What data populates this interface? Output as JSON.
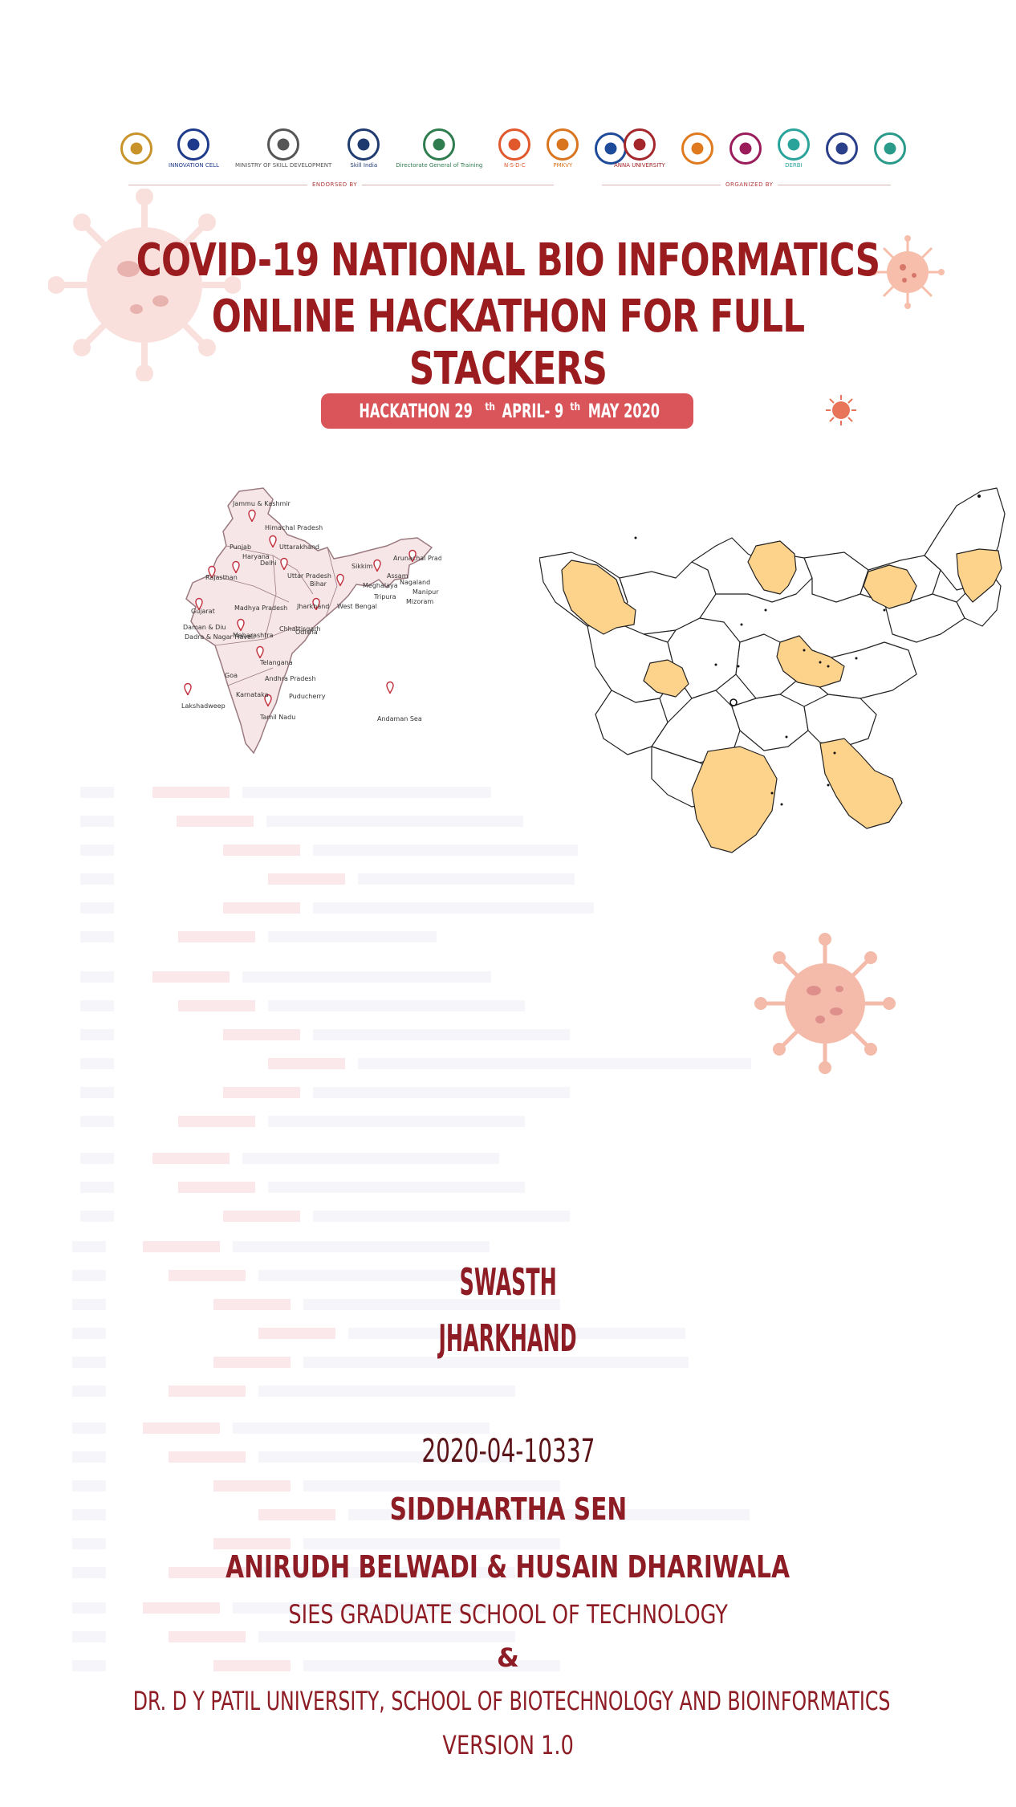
{
  "logos_left": [
    {
      "icon": "aicte-logo",
      "text": "",
      "color": "#c8942a"
    },
    {
      "icon": "innovation-cell-logo",
      "text": "INNOVATION CELL",
      "color": "#1e3a8a"
    },
    {
      "icon": "ministry-emblem-logo",
      "text": "MINISTRY OF SKILL DEVELOPMENT",
      "color": "#555555"
    },
    {
      "icon": "skill-india-logo",
      "text": "Skill India",
      "color": "#1e3a6e"
    },
    {
      "icon": "dgt-logo",
      "text": "Directorate General of Training",
      "color": "#2f7d4f"
    },
    {
      "icon": "nsdc-logo",
      "text": "N·S·D·C",
      "color": "#e0582c"
    },
    {
      "icon": "pmkvy-logo",
      "text": "PMKVY",
      "color": "#d9751e"
    },
    {
      "icon": "tree-logo",
      "text": "",
      "color": "#1e4a9a"
    }
  ],
  "logos_right": [
    {
      "icon": "anna-university-logo",
      "text": "ANNA UNIVERSITY",
      "color": "#a3272b"
    },
    {
      "icon": "circle-logo",
      "text": "",
      "color": "#e07a1e"
    },
    {
      "icon": "centre-logo",
      "text": "",
      "color": "#9b1c5a"
    },
    {
      "icon": "derbi-logo",
      "text": "DERBI",
      "color": "#2aa39a"
    },
    {
      "icon": "seal-logo",
      "text": "",
      "color": "#2a3f8a"
    },
    {
      "icon": "globe-logo",
      "text": "",
      "color": "#2a9a8a"
    }
  ],
  "endorsed_label": "ENDORSED BY",
  "organized_label": "ORGANIZED BY",
  "title_line1": "COVID-19 NATIONAL BIO INFORMATICS",
  "title_line2": "ONLINE HACKATHON FOR FULL STACKERS",
  "badge": {
    "prefix": "HACKATHON  29",
    "sup1": "th",
    "mid": " APRIL- 9",
    "sup2": "th",
    "suffix": " MAY 2020"
  },
  "india_map_labels": [
    "Jammu & Kashmir",
    "Himachal Pradesh",
    "Punjab",
    "Uttarakhand",
    "Haryana",
    "Delhi",
    "Rajasthan",
    "Uttar Pradesh",
    "Sikkim",
    "Arunachal Pradesh",
    "Assam",
    "Nagaland",
    "Meghalaya",
    "Manipur",
    "Tripura",
    "Mizoram",
    "Bihar",
    "Jharkhand",
    "West Bengal",
    "Gujarat",
    "Madhya Pradesh",
    "Chhattisgarh",
    "Odisha",
    "Daman & Diu",
    "Dadra & Nagar Haveli",
    "Maharashtra",
    "Telangana",
    "Goa",
    "Andhra Pradesh",
    "Karnataka",
    "Lakshadweep",
    "Puducherry",
    "Tamil Nadu",
    "Andaman Sea"
  ],
  "project_name_line1": "SWASTH",
  "project_name_line2": "JHARKHAND",
  "team_id": "2020-04-10337",
  "lead": "SIDDHARTHA SEN",
  "members": "ANIRUDH BELWADI & HUSAIN DHARIWALA",
  "institution1": "SIES GRADUATE SCHOOL OF TECHNOLOGY",
  "ampersand": "&",
  "institution2": "DR. D Y PATIL UNIVERSITY, SCHOOL OF BIOTECHNOLOGY AND BIOINFORMATICS",
  "version": "VERSION 1.0",
  "colors": {
    "title": "#9b1c1f",
    "badge": "#d9555a",
    "highlight_district": "#fdd38c",
    "virus": "#f2a893"
  }
}
